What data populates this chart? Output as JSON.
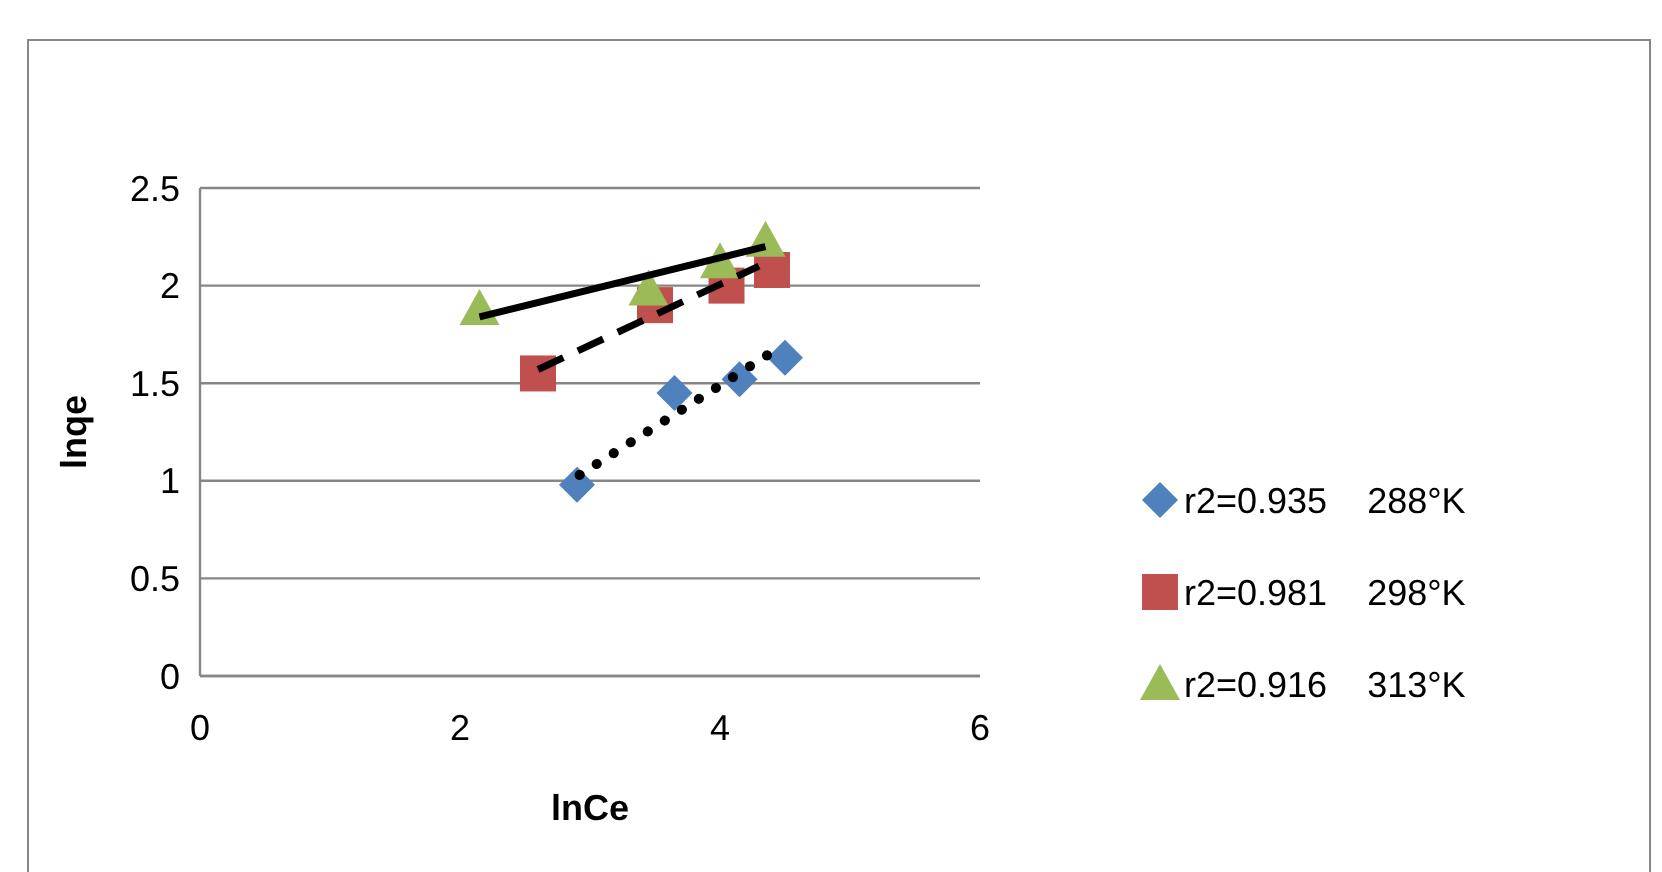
{
  "chart_data": {
    "type": "scatter",
    "xlabel": "lnCe",
    "ylabel": "lnqe",
    "xlim": [
      0,
      6
    ],
    "xticks": [
      0,
      2,
      4,
      6
    ],
    "ylim": [
      0,
      2.5
    ],
    "yticks": [
      0,
      0.5,
      1,
      1.5,
      2,
      2.5
    ],
    "grid": "y",
    "legend": "right",
    "series": [
      {
        "name": "r2=0.935    288°K",
        "color": "#4f81bd",
        "marker": "diamond",
        "x": [
          2.9,
          3.65,
          4.15,
          4.5
        ],
        "values": [
          0.98,
          1.45,
          1.52,
          1.63
        ]
      },
      {
        "name": "r2=0.981    298°K",
        "color": "#c0504d",
        "marker": "square",
        "x": [
          2.6,
          3.5,
          4.05,
          4.4
        ],
        "values": [
          1.55,
          1.9,
          2.0,
          2.08
        ]
      },
      {
        "name": "r2=0.916    313°K",
        "color": "#9bbb59",
        "marker": "triangle",
        "x": [
          2.15,
          3.45,
          4.0,
          4.35
        ],
        "values": [
          1.88,
          1.98,
          2.12,
          2.23
        ]
      },
      {
        "type": "line",
        "color": "#000000",
        "line_style": "dotted",
        "x": [
          2.92,
          4.45
        ],
        "values": [
          1.03,
          1.68
        ]
      },
      {
        "type": "line",
        "color": "#000000",
        "line_style": "dashed",
        "x": [
          2.6,
          4.3
        ],
        "values": [
          1.57,
          2.1
        ]
      },
      {
        "type": "line",
        "color": "#000000",
        "line_style": "solid",
        "x": [
          2.15,
          4.35
        ],
        "values": [
          1.84,
          2.2
        ]
      }
    ]
  }
}
